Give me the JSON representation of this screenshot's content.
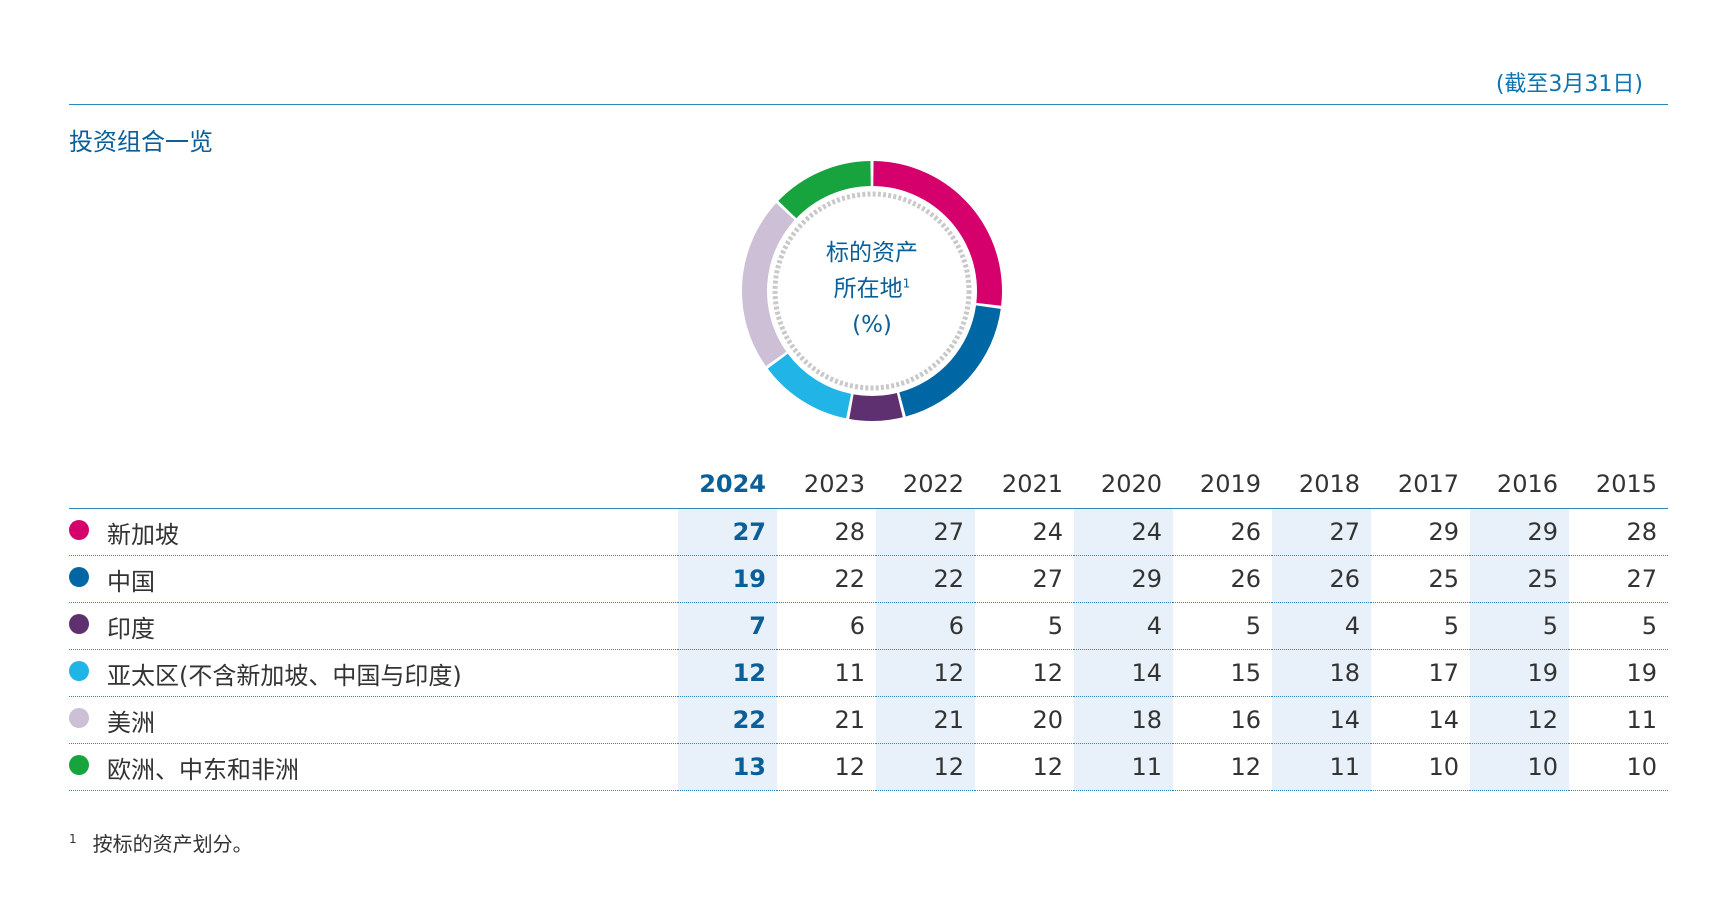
{
  "header": {
    "as_of": "(截至3月31日)",
    "title": "投资组合一览"
  },
  "donut": {
    "line1": "标的资产",
    "line2": "所在地",
    "footnote_mark": "1",
    "line3": "(%)"
  },
  "footnote": {
    "mark": "1",
    "text": "按标的资产划分。"
  },
  "colors": {
    "accent": "#0b74b1",
    "title": "#0b5f98",
    "shade": "#e8f1f9"
  },
  "chart_data": {
    "type": "table",
    "donut_type": "pie",
    "donut_year": "2024",
    "highlight_year": "2024",
    "years": [
      "2024",
      "2023",
      "2022",
      "2021",
      "2020",
      "2019",
      "2018",
      "2017",
      "2016",
      "2015"
    ],
    "series": [
      {
        "name": "新加坡",
        "color": "#d6006d",
        "values": [
          27,
          28,
          27,
          24,
          24,
          26,
          27,
          29,
          29,
          28
        ]
      },
      {
        "name": "中国",
        "color": "#0067a5",
        "values": [
          19,
          22,
          22,
          27,
          29,
          26,
          26,
          25,
          25,
          27
        ]
      },
      {
        "name": "印度",
        "color": "#5f3070",
        "values": [
          7,
          6,
          6,
          5,
          4,
          5,
          4,
          5,
          5,
          5
        ]
      },
      {
        "name": "亚太区(不含新加坡、中国与印度)",
        "color": "#20b5e6",
        "values": [
          12,
          11,
          12,
          12,
          14,
          15,
          18,
          17,
          19,
          19
        ]
      },
      {
        "name": "美洲",
        "color": "#cdbfd6",
        "values": [
          22,
          21,
          21,
          20,
          18,
          16,
          14,
          14,
          12,
          11
        ]
      },
      {
        "name": "欧洲、中东和非洲",
        "color": "#17a33d",
        "values": [
          13,
          12,
          12,
          12,
          11,
          12,
          11,
          10,
          10,
          10
        ]
      }
    ]
  }
}
